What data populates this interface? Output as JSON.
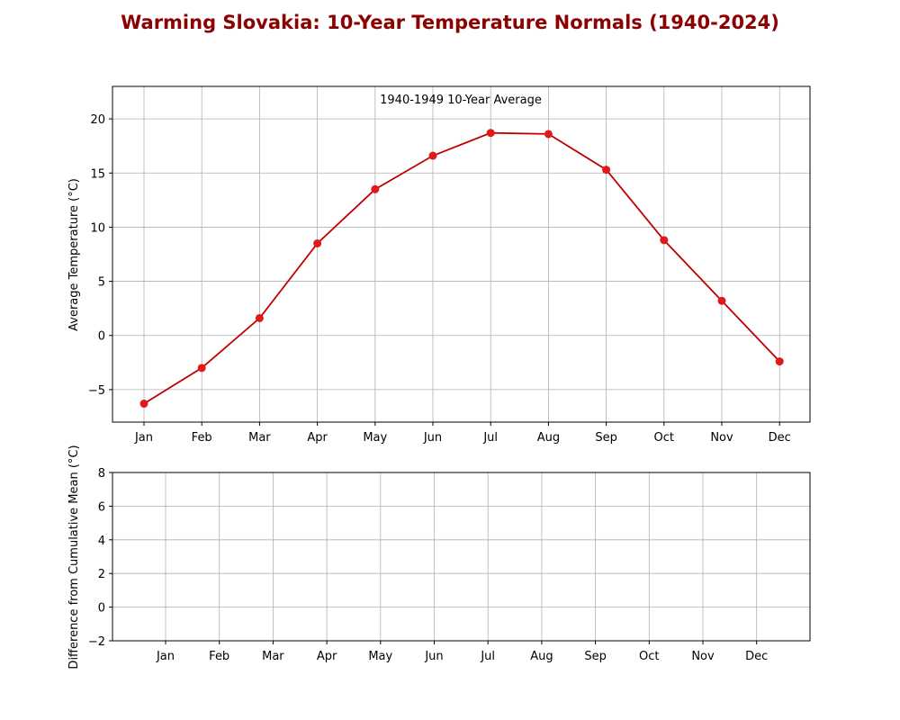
{
  "figure": {
    "title": "Warming Slovakia: 10-Year Temperature Normals (1940-2024)"
  },
  "chart_data": [
    {
      "type": "line",
      "title": "",
      "annotation": "1940-1949 10-Year Average",
      "xlabel": "",
      "ylabel": "Average Temperature (°C)",
      "categories": [
        "Jan",
        "Feb",
        "Mar",
        "Apr",
        "May",
        "Jun",
        "Jul",
        "Aug",
        "Sep",
        "Oct",
        "Nov",
        "Dec"
      ],
      "series": [
        {
          "name": "",
          "color": "#c00000",
          "marker_color": "#e0191b",
          "values": [
            -6.3,
            -3.0,
            1.6,
            8.5,
            13.5,
            16.6,
            18.7,
            18.6,
            15.3,
            8.8,
            3.2,
            -2.4
          ]
        }
      ],
      "ylim": [
        -8,
        23
      ],
      "yticks": [
        -5,
        0,
        5,
        10,
        15,
        20
      ],
      "grid": true,
      "legend": "none"
    },
    {
      "type": "bar",
      "title": "",
      "xlabel": "",
      "ylabel": "Difference from Cumulative Mean (°C)",
      "categories": [
        "Jan",
        "Feb",
        "Mar",
        "Apr",
        "May",
        "Jun",
        "Jul",
        "Aug",
        "Sep",
        "Oct",
        "Nov",
        "Dec"
      ],
      "series": [],
      "ylim": [
        -2,
        8
      ],
      "yticks": [
        -2,
        0,
        2,
        4,
        6,
        8
      ],
      "grid": true,
      "legend": "none"
    }
  ]
}
